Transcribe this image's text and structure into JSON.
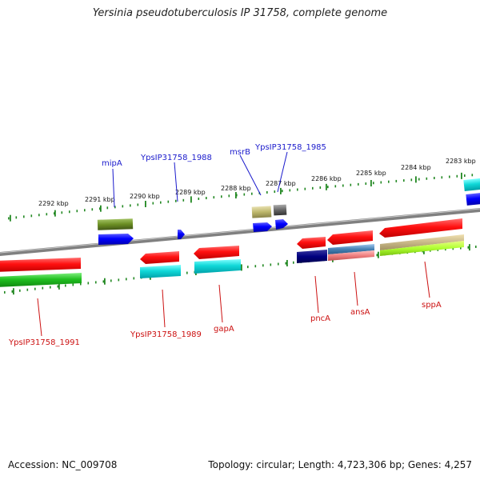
{
  "title": "Yersinia pseudotuberculosis IP 31758, complete genome",
  "footer": {
    "accession": "Accession: NC_009708",
    "summary": "Topology: circular; Length: 4,723,306 bp; Genes: 4,257"
  },
  "ticks": [
    "2292 kbp",
    "2291 kbp",
    "2290 kbp",
    "2289 kbp",
    "2288 kbp",
    "2287 kbp",
    "2286 kbp",
    "2285 kbp",
    "2284 kbp",
    "2283 kbp"
  ],
  "colors": {
    "backbone": "#888888",
    "tick_dots": "#228822",
    "label_forward": "#1a1acc",
    "label_reverse": "#cc1111"
  },
  "forward_labels": [
    "mipA",
    "YpsIP31758_1988",
    "msrB",
    "YpsIP31758_1985"
  ],
  "reverse_labels": [
    "YpsIP31758_1991",
    "YpsIP31758_1989",
    "gapA",
    "pncA",
    "ansA",
    "sppA"
  ]
}
